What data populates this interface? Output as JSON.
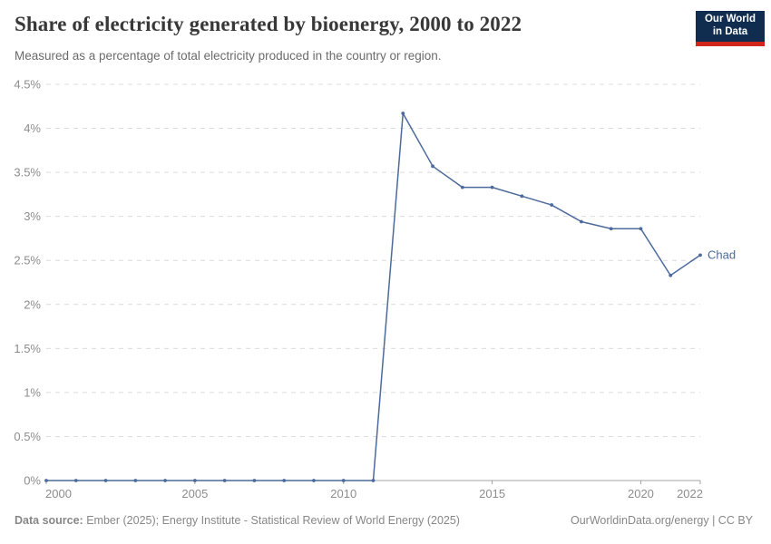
{
  "chart_data": {
    "type": "line",
    "title": "Share of electricity generated by bioenergy, 2000 to 2022",
    "subtitle": "Measured as a percentage of total electricity produced in the country or region.",
    "entity_label": "Chad",
    "x": [
      2000,
      2001,
      2002,
      2003,
      2004,
      2005,
      2006,
      2007,
      2008,
      2009,
      2010,
      2011,
      2012,
      2013,
      2014,
      2015,
      2016,
      2017,
      2018,
      2019,
      2020,
      2021,
      2022
    ],
    "series": [
      {
        "name": "Chad",
        "values": [
          0,
          0,
          0,
          0,
          0,
          0,
          0,
          0,
          0,
          0,
          0,
          0,
          4.17,
          3.57,
          3.33,
          3.33,
          3.23,
          3.13,
          2.94,
          2.86,
          2.86,
          2.33,
          2.56
        ]
      }
    ],
    "xlim": [
      2000,
      2022
    ],
    "ylim": [
      0,
      4.5
    ],
    "x_ticks": [
      2000,
      2005,
      2010,
      2015,
      2020,
      2022
    ],
    "y_ticks": [
      0,
      0.5,
      1,
      1.5,
      2,
      2.5,
      3,
      3.5,
      4,
      4.5
    ],
    "y_tick_labels": [
      "0%",
      "0.5%",
      "1%",
      "1.5%",
      "2%",
      "2.5%",
      "3%",
      "3.5%",
      "4%",
      "4.5%"
    ],
    "grid": "horizontal-dashed",
    "legend_position": "end-of-line-label",
    "colors": {
      "line": "#4c6a9c",
      "grid": "#dcdcdc",
      "axis": "#a3a3a3",
      "tick_text": "#8d8d8d"
    }
  },
  "logo": {
    "line1": "Our World",
    "line2": "in Data",
    "bg": "#102d50",
    "accent": "#cf271c"
  },
  "footer": {
    "source_label": "Data source:",
    "source_text": " Ember (2025); Energy Institute - Statistical Review of World Energy (2025)",
    "rights": "OurWorldinData.org/energy | CC BY"
  }
}
